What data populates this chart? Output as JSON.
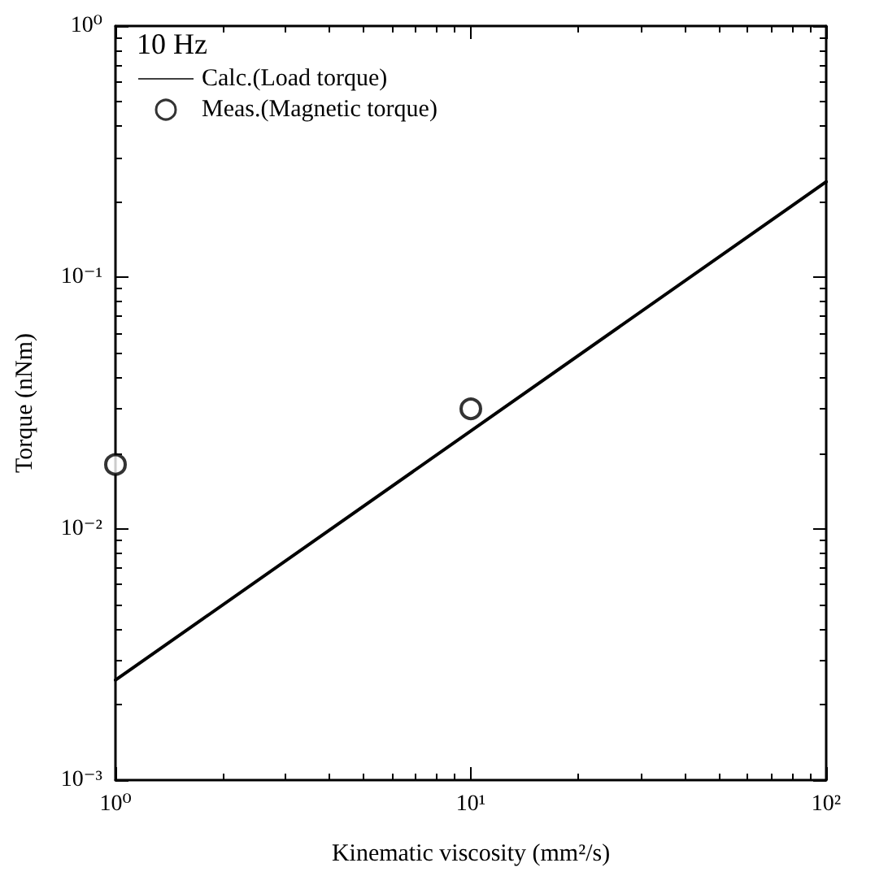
{
  "chart_data": {
    "type": "line",
    "xlabel": "Kinematic viscosity (mm²/s)",
    "ylabel": "Torque (nNm)",
    "log": "xy",
    "annotations": [
      "10 Hz"
    ],
    "xlim": [
      1,
      100
    ],
    "xticks": [
      {
        "value": 1,
        "label": "10⁰"
      },
      {
        "value": 10,
        "label": "10¹"
      },
      {
        "value": 100,
        "label": "10²"
      }
    ],
    "ylim": [
      0.001,
      1
    ],
    "yticks": [
      {
        "value": 0.001,
        "label": "10⁻³"
      },
      {
        "value": 0.01,
        "label": "10⁻²"
      },
      {
        "value": 0.1,
        "label": "10⁻¹"
      },
      {
        "value": 1,
        "label": "10⁰"
      }
    ],
    "legend": "top left",
    "grid": false,
    "series": [
      {
        "name": "Calc.(Load torque)",
        "color": "#000000",
        "x": [
          1,
          100
        ],
        "values": [
          0.0025,
          0.24
        ],
        "marker": "none",
        "line_style": "solid"
      },
      {
        "name": "Meas.(Magnetic torque)",
        "type": "scatter",
        "color": "#000000",
        "x": [
          1,
          10
        ],
        "values": [
          0.018,
          0.03
        ],
        "marker": "circle"
      }
    ]
  }
}
